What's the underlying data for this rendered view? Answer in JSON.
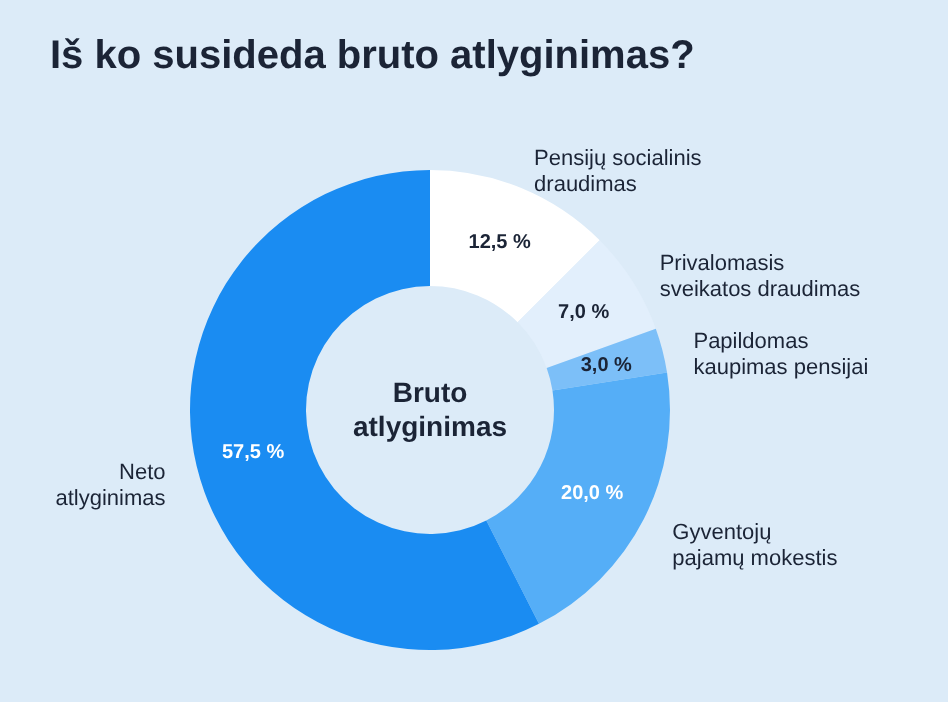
{
  "chart_data": {
    "type": "donut",
    "title": "Iš ko susideda bruto atlyginimas?",
    "categories": [
      "Pensijų socialinis draudimas",
      "Privalomasis sveikatos draudimas",
      "Papildomas kaupimas pensijai",
      "Gyventojų pajamų mokestis",
      "Neto atlyginimas"
    ],
    "values": [
      12.5,
      7.0,
      3.0,
      20.0,
      57.5
    ],
    "value_labels": [
      "12,5 %",
      "7,0 %",
      "3,0 %",
      "20,0 %",
      "57,5 %"
    ],
    "colors": [
      "#ffffff",
      "#e2effc",
      "#7cbff8",
      "#55aef7",
      "#1a8cf2"
    ],
    "annotations": [
      "Bruto atlyginimas"
    ]
  }
}
